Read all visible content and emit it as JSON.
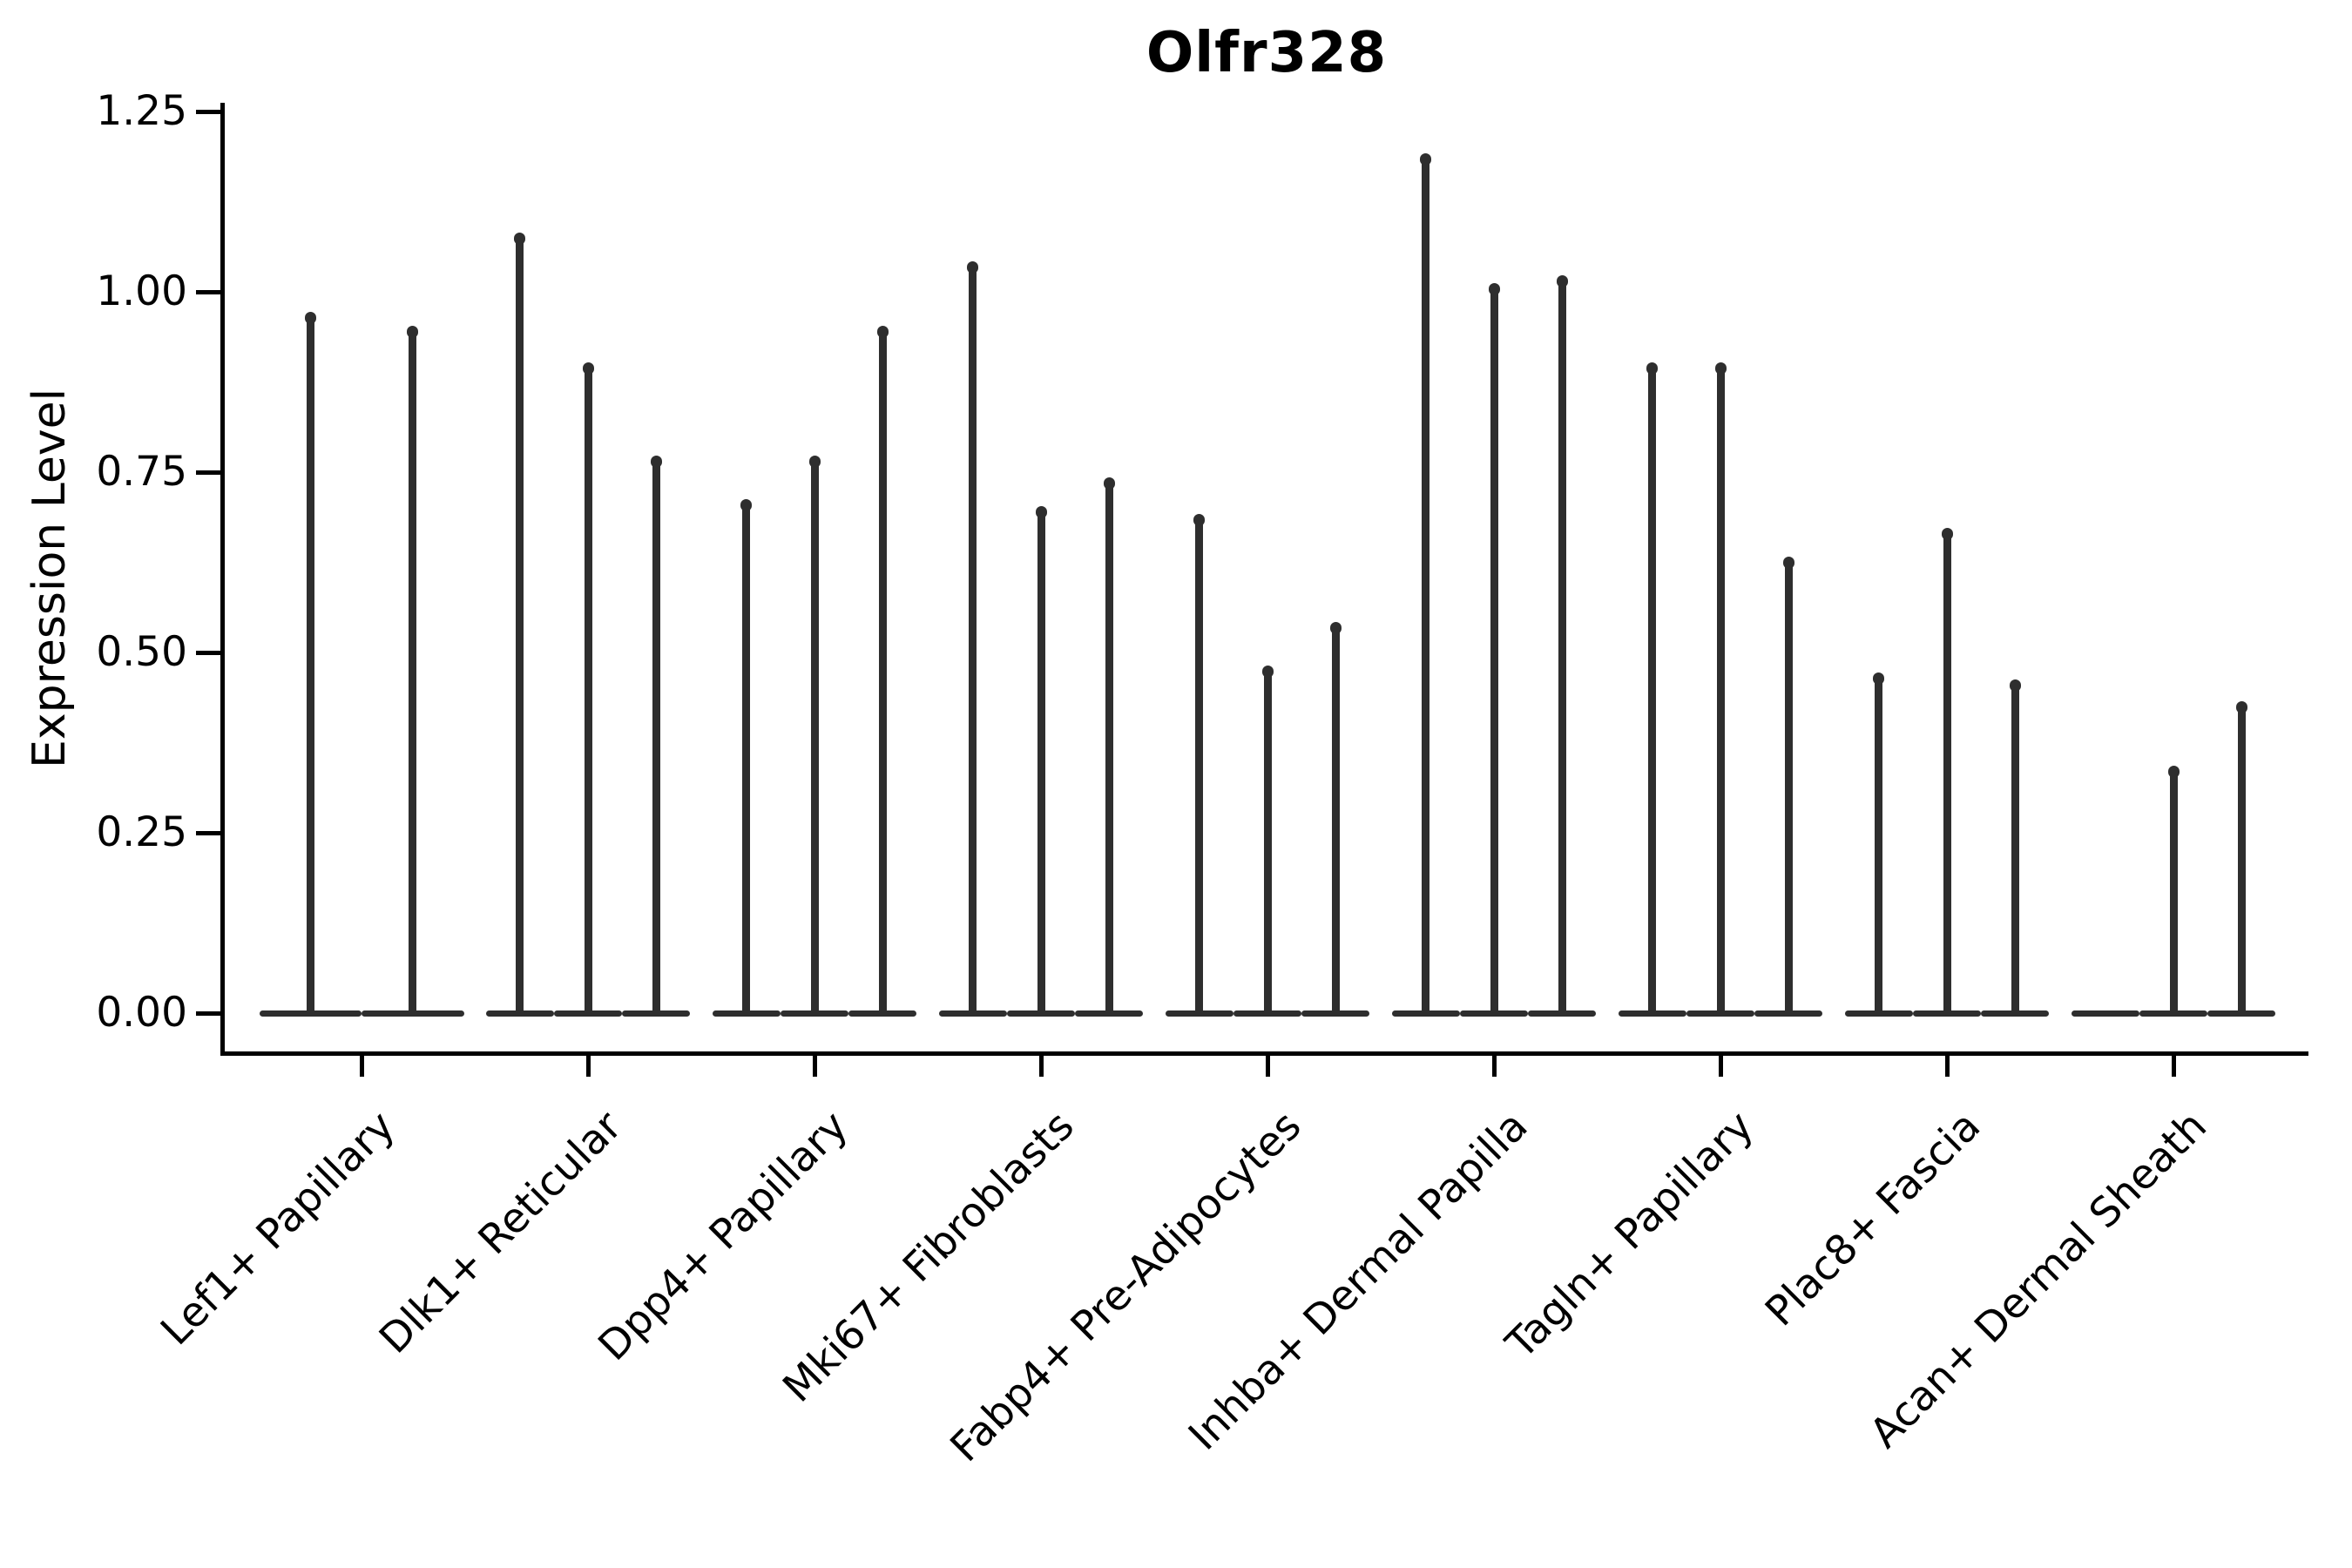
{
  "chart_data": {
    "type": "violin",
    "title": "Olfr328",
    "ylabel": "Expression Level",
    "xlabel": "",
    "ylim": [
      0,
      1.25
    ],
    "ytick_values": [
      0,
      0.25,
      0.5,
      0.75,
      1.0,
      1.25
    ],
    "ytick_labels": [
      "0.00",
      "0.25",
      "0.50",
      "0.75",
      "1.00",
      "1.25"
    ],
    "grid": false,
    "legend_position": "none",
    "style_note": "narrow needle-like violins (near-zero bandwidth) with flat bases merged at y=0; dark charcoal on white; only left and bottom spines",
    "categories": [
      "Lef1+ Papillary",
      "Dlk1+ Reticular",
      "Dpp4+ Papillary",
      "Mki67+ Fibroblasts",
      "Fabp4+ Pre-Adipocytes",
      "Inhba+ Dermal Papilla",
      "Tagln+ Papillary",
      "Plac8+ Fascia",
      "Acan+ Dermal Sheath"
    ],
    "series": [
      {
        "category": "Lef1+ Papillary",
        "violin_max_values": [
          0.97,
          0.95
        ]
      },
      {
        "category": "Dlk1+ Reticular",
        "violin_max_values": [
          1.08,
          0.9,
          0.77
        ]
      },
      {
        "category": "Dpp4+ Papillary",
        "violin_max_values": [
          0.71,
          0.77,
          0.95
        ]
      },
      {
        "category": "Mki67+ Fibroblasts",
        "violin_max_values": [
          1.04,
          0.7,
          0.74
        ]
      },
      {
        "category": "Fabp4+ Pre-Adipocytes",
        "violin_max_values": [
          0.69,
          0.48,
          0.54
        ]
      },
      {
        "category": "Inhba+ Dermal Papilla",
        "violin_max_values": [
          1.19,
          1.01,
          1.02
        ]
      },
      {
        "category": "Tagln+ Papillary",
        "violin_max_values": [
          0.9,
          0.9,
          0.63
        ]
      },
      {
        "category": "Plac8+ Fascia",
        "violin_max_values": [
          0.47,
          0.67,
          0.46
        ]
      },
      {
        "category": "Acan+ Dermal Sheath",
        "violin_max_values": [
          0.0,
          0.34,
          0.43
        ]
      }
    ]
  },
  "colors": {
    "violin": "#2e2e2e",
    "axis": "#000000",
    "text": "#000000",
    "background": "#ffffff"
  }
}
